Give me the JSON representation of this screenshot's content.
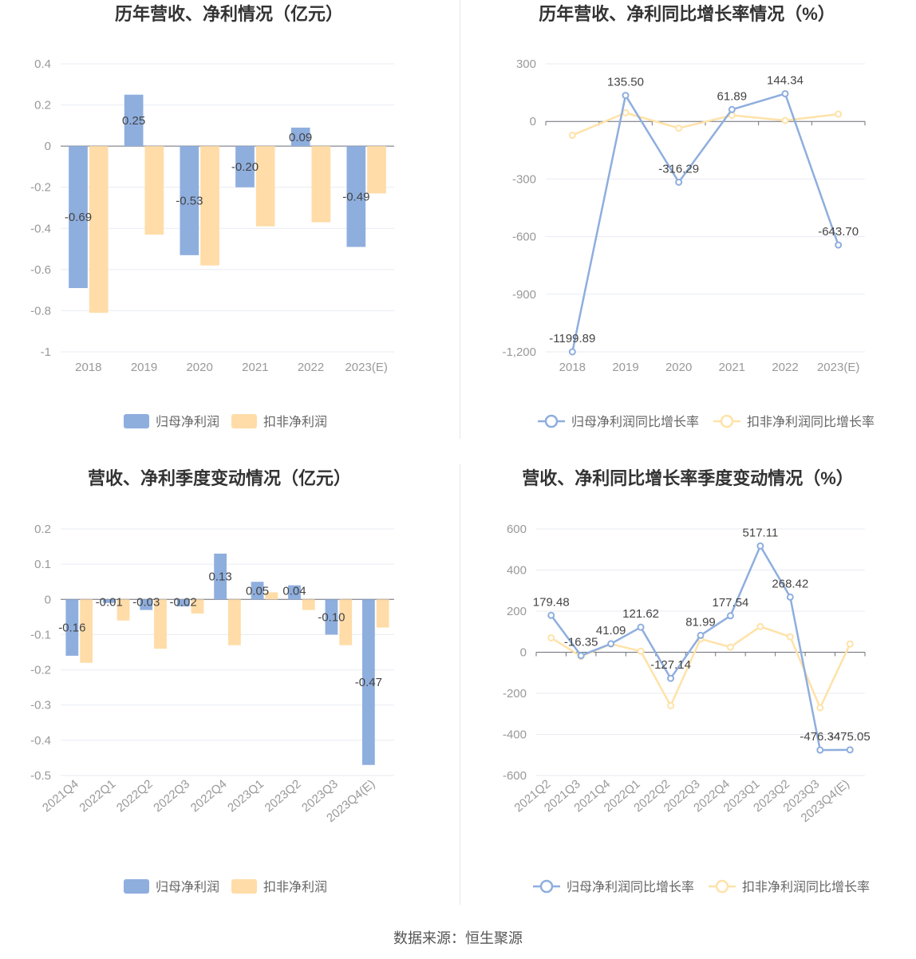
{
  "source_text": "数据来源：恒生聚源",
  "colors": {
    "series_a": "#8eaede",
    "series_b": "#ffdca8",
    "series_b_line": "#ffe2a8",
    "grid": "#e8ebf2",
    "axis": "#6e7079"
  },
  "chart_data": [
    {
      "type": "bar",
      "title": "历年营收、净利情况（亿元）",
      "categories": [
        "2018",
        "2019",
        "2020",
        "2021",
        "2022",
        "2023(E)"
      ],
      "ylim": [
        -1,
        0.4
      ],
      "yticks": [
        "0.4",
        "0.2",
        "0",
        "-0.2",
        "-0.4",
        "-0.6",
        "-0.8",
        "-1"
      ],
      "ytick_values": [
        0.4,
        0.2,
        0,
        -0.2,
        -0.4,
        -0.6,
        -0.8,
        -1
      ],
      "series": [
        {
          "name": "归母净利润",
          "values": [
            -0.69,
            0.25,
            -0.53,
            -0.2,
            0.09,
            -0.49
          ],
          "labels": [
            "-0.69",
            "0.25",
            "-0.53",
            "-0.20",
            "0.09",
            "-0.49"
          ]
        },
        {
          "name": "扣非净利润",
          "values": [
            -0.81,
            -0.43,
            -0.58,
            -0.39,
            -0.37,
            -0.23
          ]
        }
      ],
      "grid": true,
      "legend": "bottom-center"
    },
    {
      "type": "line",
      "title": "历年营收、净利同比增长率情况（%）",
      "categories": [
        "2018",
        "2019",
        "2020",
        "2021",
        "2022",
        "2023(E)"
      ],
      "ylim": [
        -1200,
        300
      ],
      "yticks": [
        "300",
        "0",
        "-300",
        "-600",
        "-900",
        "-1,200"
      ],
      "ytick_values": [
        300,
        0,
        -300,
        -600,
        -900,
        -1200
      ],
      "series": [
        {
          "name": "归母净利润同比增长率",
          "values": [
            -1199.89,
            135.5,
            -316.29,
            61.89,
            144.34,
            -643.7
          ],
          "labels": [
            "-1199.89",
            "135.50",
            "-316.29",
            "61.89",
            "144.34",
            "-643.70"
          ]
        },
        {
          "name": "扣非净利润同比增长率",
          "values": [
            -72,
            45,
            -35,
            32,
            5,
            38
          ]
        }
      ],
      "grid": true,
      "legend": "bottom-center"
    },
    {
      "type": "bar",
      "title": "营收、净利季度变动情况（亿元）",
      "categories": [
        "2021Q4",
        "2022Q1",
        "2022Q2",
        "2022Q3",
        "2022Q4",
        "2023Q1",
        "2023Q2",
        "2023Q3",
        "2023Q4(E)"
      ],
      "ylim": [
        -0.5,
        0.2
      ],
      "yticks": [
        "0.2",
        "0.1",
        "0",
        "-0.1",
        "-0.2",
        "-0.3",
        "-0.4",
        "-0.5"
      ],
      "ytick_values": [
        0.2,
        0.1,
        0,
        -0.1,
        -0.2,
        -0.3,
        -0.4,
        -0.5
      ],
      "series": [
        {
          "name": "归母净利润",
          "values": [
            -0.16,
            -0.01,
            -0.03,
            -0.02,
            0.13,
            0.05,
            0.04,
            -0.1,
            -0.47
          ],
          "labels": [
            "-0.16",
            "-0.01",
            "-0.03",
            "-0.02",
            "0.13",
            "0.05",
            "0.04",
            "-0.10",
            "-0.47"
          ]
        },
        {
          "name": "扣非净利润",
          "values": [
            -0.18,
            -0.06,
            -0.14,
            -0.04,
            -0.13,
            0.02,
            -0.03,
            -0.13,
            -0.08
          ]
        }
      ],
      "grid": true,
      "legend": "bottom-center"
    },
    {
      "type": "line",
      "title": "营收、净利同比增长率季度变动情况（%）",
      "categories": [
        "2021Q2",
        "2021Q3",
        "2021Q4",
        "2022Q1",
        "2022Q2",
        "2022Q3",
        "2022Q4",
        "2023Q1",
        "2023Q2",
        "2023Q3",
        "2023Q4(E)"
      ],
      "ylim": [
        -600,
        600
      ],
      "yticks": [
        "600",
        "400",
        "200",
        "0",
        "-200",
        "-400",
        "-600"
      ],
      "ytick_values": [
        600,
        400,
        200,
        0,
        -200,
        -400,
        -600
      ],
      "series": [
        {
          "name": "归母净利润同比增长率",
          "values": [
            179.48,
            -16.35,
            41.09,
            121.62,
            -127.14,
            81.99,
            177.54,
            517.11,
            268.42,
            -476.34,
            -475.05
          ],
          "labels": [
            "179.48",
            "-16.35",
            "41.09",
            "121.62",
            "-127.14",
            "81.99",
            "177.54",
            "517.11",
            "268.42",
            "-476.34",
            "-475.05"
          ]
        },
        {
          "name": "扣非净利润同比增长率",
          "values": [
            70,
            -20,
            40,
            5,
            -260,
            65,
            25,
            125,
            75,
            -270,
            40
          ]
        }
      ],
      "grid": true,
      "legend": "bottom-center"
    }
  ]
}
